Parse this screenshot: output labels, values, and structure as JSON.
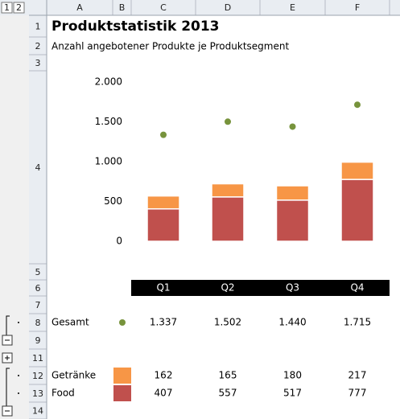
{
  "outline_levels": [
    "1",
    "2"
  ],
  "column_headers": [
    "A",
    "B",
    "C",
    "D",
    "E",
    "F"
  ],
  "row_headers": [
    "1",
    "2",
    "3",
    "4",
    "5",
    "6",
    "7",
    "8",
    "9",
    "11",
    "12",
    "13",
    "14"
  ],
  "chart_data": {
    "type": "bar",
    "stacked": true,
    "title": "Produktstatistik 2013",
    "subtitle": "Anzahl angebotener Produkte je Produktsegment",
    "categories": [
      "Q1",
      "Q2",
      "Q3",
      "Q4"
    ],
    "ylim": [
      0,
      2000
    ],
    "yticks": [
      0,
      500,
      {
        "value": 1000,
        "label": "1.000"
      },
      {
        "value": 1500,
        "label": "1.500"
      },
      {
        "value": 2000,
        "label": "2.000"
      }
    ],
    "series": [
      {
        "name": "Food",
        "color": "#c0504d",
        "values": [
          407,
          557,
          517,
          777
        ],
        "value_labels": [
          "407",
          "557",
          "517",
          "777"
        ]
      },
      {
        "name": "Getränke",
        "color": "#f79646",
        "values": [
          162,
          165,
          180,
          217
        ],
        "value_labels": [
          "162",
          "165",
          "180",
          "217"
        ]
      },
      {
        "name": "Gesamt",
        "type": "scatter",
        "color": "#77933c",
        "values": [
          1337,
          1502,
          1440,
          1715
        ],
        "value_labels": [
          "1.337",
          "1.502",
          "1.440",
          "1.715"
        ]
      }
    ]
  }
}
